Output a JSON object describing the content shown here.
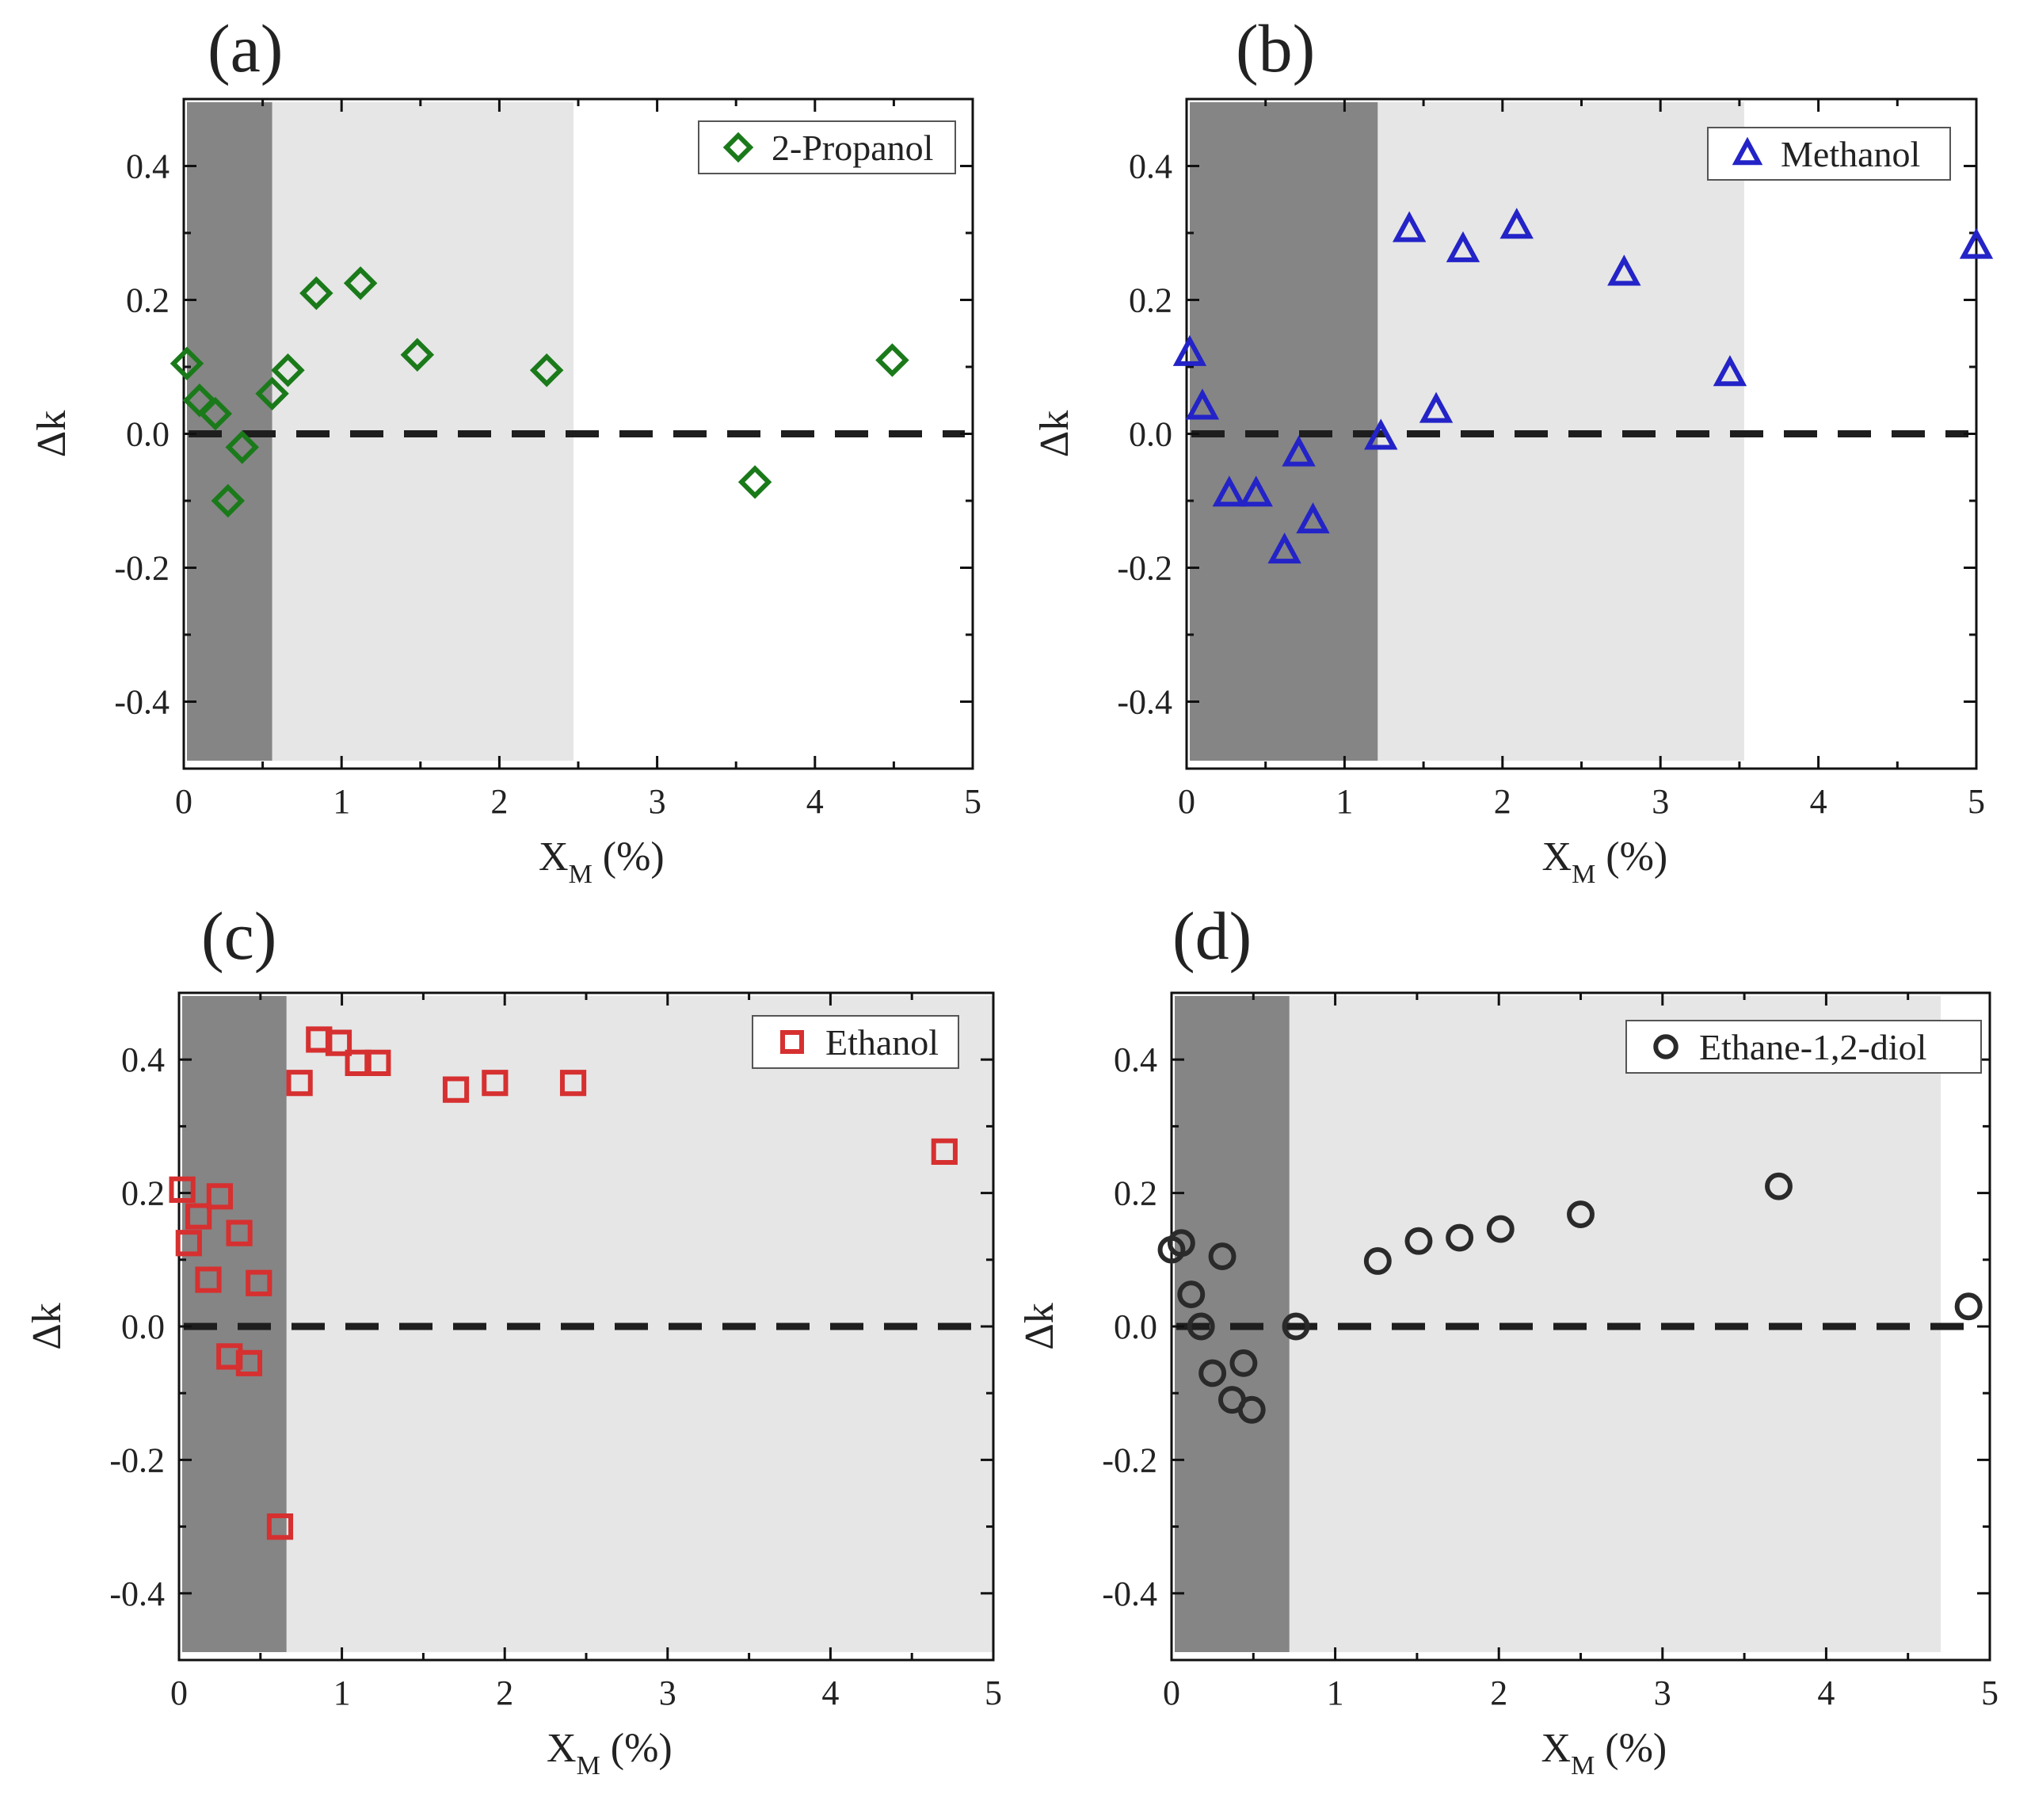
{
  "figure": {
    "panels": [
      {
        "panel_label": "(a)",
        "series_name": "2-Propanol",
        "marker": "diamond",
        "color": "#1a7a1a",
        "x_label": "X",
        "x_label_sub": "M",
        "x_label_unit": " (%)",
        "y_label": "Δk",
        "xlim": [
          0,
          5
        ],
        "ylim": [
          -0.5,
          0.5
        ],
        "x_ticks": [
          "0",
          "1",
          "2",
          "3",
          "4",
          "5"
        ],
        "y_ticks": [
          "-0.4",
          "-0.2",
          "0.0",
          "0.2",
          "0.4"
        ],
        "dark_region": [
          0,
          0.56
        ],
        "light_region": [
          0.56,
          2.47
        ],
        "data": [
          [
            0.02,
            0.105
          ],
          [
            0.1,
            0.05
          ],
          [
            0.2,
            0.03
          ],
          [
            0.28,
            -0.1
          ],
          [
            0.37,
            -0.02
          ],
          [
            0.56,
            0.06
          ],
          [
            0.66,
            0.095
          ],
          [
            0.84,
            0.21
          ],
          [
            1.12,
            0.225
          ],
          [
            1.48,
            0.118
          ],
          [
            2.3,
            0.095
          ],
          [
            3.62,
            -0.072
          ],
          [
            4.49,
            0.11
          ]
        ]
      },
      {
        "panel_label": "(b)",
        "series_name": "Methanol",
        "marker": "triangle",
        "color": "#2323c8",
        "x_label": "X",
        "x_label_sub": "M",
        "x_label_unit": " (%)",
        "y_label": "Δk",
        "xlim": [
          0,
          5
        ],
        "ylim": [
          -0.5,
          0.5
        ],
        "x_ticks": [
          "0",
          "1",
          "2",
          "3",
          "4",
          "5"
        ],
        "y_ticks": [
          "-0.4",
          "-0.2",
          "0.0",
          "0.2",
          "0.4"
        ],
        "dark_region": [
          0,
          1.21
        ],
        "light_region": [
          1.21,
          3.53
        ],
        "data": [
          [
            0.02,
            0.12
          ],
          [
            0.1,
            0.04
          ],
          [
            0.27,
            -0.09
          ],
          [
            0.44,
            -0.09
          ],
          [
            0.62,
            -0.175
          ],
          [
            0.71,
            -0.03
          ],
          [
            0.8,
            -0.13
          ],
          [
            1.23,
            -0.005
          ],
          [
            1.41,
            0.305
          ],
          [
            1.58,
            0.035
          ],
          [
            1.75,
            0.275
          ],
          [
            2.09,
            0.31
          ],
          [
            2.77,
            0.24
          ],
          [
            3.44,
            0.09
          ],
          [
            5.0,
            0.28
          ]
        ]
      },
      {
        "panel_label": "(c)",
        "series_name": "Ethanol",
        "marker": "square",
        "color": "#d63030",
        "x_label": "X",
        "x_label_sub": "M",
        "x_label_unit": " (%)",
        "y_label": "Δk",
        "xlim": [
          0,
          5
        ],
        "ylim": [
          -0.5,
          0.5
        ],
        "x_ticks": [
          "0",
          "1",
          "2",
          "3",
          "4",
          "5"
        ],
        "y_ticks": [
          "-0.4",
          "-0.2",
          "0.0",
          "0.2",
          "0.4"
        ],
        "dark_region": [
          0,
          0.66
        ],
        "light_region": [
          0.66,
          5.0
        ],
        "data": [
          [
            0.02,
            0.205
          ],
          [
            0.06,
            0.125
          ],
          [
            0.12,
            0.165
          ],
          [
            0.18,
            0.07
          ],
          [
            0.25,
            0.195
          ],
          [
            0.31,
            -0.045
          ],
          [
            0.37,
            0.14
          ],
          [
            0.43,
            -0.055
          ],
          [
            0.49,
            0.065
          ],
          [
            0.62,
            -0.3
          ],
          [
            0.74,
            0.365
          ],
          [
            0.86,
            0.43
          ],
          [
            0.98,
            0.425
          ],
          [
            1.1,
            0.395
          ],
          [
            1.22,
            0.395
          ],
          [
            1.7,
            0.355
          ],
          [
            1.94,
            0.365
          ],
          [
            2.42,
            0.365
          ],
          [
            4.7,
            0.262
          ]
        ]
      },
      {
        "panel_label": "(d)",
        "series_name": "Ethane-1,2-diol",
        "marker": "circle",
        "color": "#2a2a2a",
        "x_label": "X",
        "x_label_sub": "M",
        "x_label_unit": " (%)",
        "y_label": "Δk",
        "xlim": [
          0,
          5
        ],
        "ylim": [
          -0.5,
          0.5
        ],
        "x_ticks": [
          "0",
          "1",
          "2",
          "3",
          "4",
          "5"
        ],
        "y_ticks": [
          "-0.4",
          "-0.2",
          "0.0",
          "0.2",
          "0.4"
        ],
        "dark_region": [
          0,
          0.72
        ],
        "light_region": [
          0.72,
          4.7
        ],
        "data": [
          [
            0.0,
            0.115
          ],
          [
            0.06,
            0.125
          ],
          [
            0.12,
            0.048
          ],
          [
            0.18,
            0.0
          ],
          [
            0.25,
            -0.07
          ],
          [
            0.31,
            0.105
          ],
          [
            0.37,
            -0.11
          ],
          [
            0.44,
            -0.055
          ],
          [
            0.49,
            -0.125
          ],
          [
            0.76,
            0.0
          ],
          [
            1.26,
            0.098
          ],
          [
            1.51,
            0.128
          ],
          [
            1.76,
            0.133
          ],
          [
            2.01,
            0.146
          ],
          [
            2.5,
            0.168
          ],
          [
            3.71,
            0.21
          ],
          [
            4.87,
            0.03
          ]
        ]
      }
    ]
  },
  "chart_data": [
    {
      "type": "scatter",
      "title": "(a)",
      "series": [
        {
          "name": "2-Propanol",
          "x": [
            0.02,
            0.1,
            0.2,
            0.28,
            0.37,
            0.56,
            0.66,
            0.84,
            1.12,
            1.48,
            2.3,
            3.62,
            4.49
          ],
          "y": [
            0.105,
            0.05,
            0.03,
            -0.1,
            -0.02,
            0.06,
            0.095,
            0.21,
            0.225,
            0.118,
            0.095,
            -0.072,
            0.11
          ]
        }
      ],
      "xlabel": "XM (%)",
      "ylabel": "Δk",
      "xlim": [
        0,
        5
      ],
      "ylim": [
        -0.5,
        0.5
      ]
    },
    {
      "type": "scatter",
      "title": "(b)",
      "series": [
        {
          "name": "Methanol",
          "x": [
            0.02,
            0.1,
            0.27,
            0.44,
            0.62,
            0.71,
            0.8,
            1.23,
            1.41,
            1.58,
            1.75,
            2.09,
            2.77,
            3.44,
            5.0
          ],
          "y": [
            0.12,
            0.04,
            -0.09,
            -0.09,
            -0.175,
            -0.03,
            -0.13,
            -0.005,
            0.305,
            0.035,
            0.275,
            0.31,
            0.24,
            0.09,
            0.28
          ]
        }
      ],
      "xlabel": "XM (%)",
      "ylabel": "Δk",
      "xlim": [
        0,
        5
      ],
      "ylim": [
        -0.5,
        0.5
      ]
    },
    {
      "type": "scatter",
      "title": "(c)",
      "series": [
        {
          "name": "Ethanol",
          "x": [
            0.02,
            0.06,
            0.12,
            0.18,
            0.25,
            0.31,
            0.37,
            0.43,
            0.49,
            0.62,
            0.74,
            0.86,
            0.98,
            1.1,
            1.22,
            1.7,
            1.94,
            2.42,
            4.7
          ],
          "y": [
            0.205,
            0.125,
            0.165,
            0.07,
            0.195,
            -0.045,
            0.14,
            -0.055,
            0.065,
            -0.3,
            0.365,
            0.43,
            0.425,
            0.395,
            0.395,
            0.355,
            0.365,
            0.365,
            0.262
          ]
        }
      ],
      "xlabel": "XM (%)",
      "ylabel": "Δk",
      "xlim": [
        0,
        5
      ],
      "ylim": [
        -0.5,
        0.5
      ]
    },
    {
      "type": "scatter",
      "title": "(d)",
      "series": [
        {
          "name": "Ethane-1,2-diol",
          "x": [
            0.0,
            0.06,
            0.12,
            0.18,
            0.25,
            0.31,
            0.37,
            0.44,
            0.49,
            0.76,
            1.26,
            1.51,
            1.76,
            2.01,
            2.5,
            3.71,
            4.87
          ],
          "y": [
            0.115,
            0.125,
            0.048,
            0.0,
            -0.07,
            0.105,
            -0.11,
            -0.055,
            -0.125,
            0.0,
            0.098,
            0.128,
            0.133,
            0.146,
            0.168,
            0.21,
            0.03
          ]
        }
      ],
      "xlabel": "XM (%)",
      "ylabel": "Δk",
      "xlim": [
        0,
        5
      ],
      "ylim": [
        -0.5,
        0.5
      ]
    }
  ]
}
